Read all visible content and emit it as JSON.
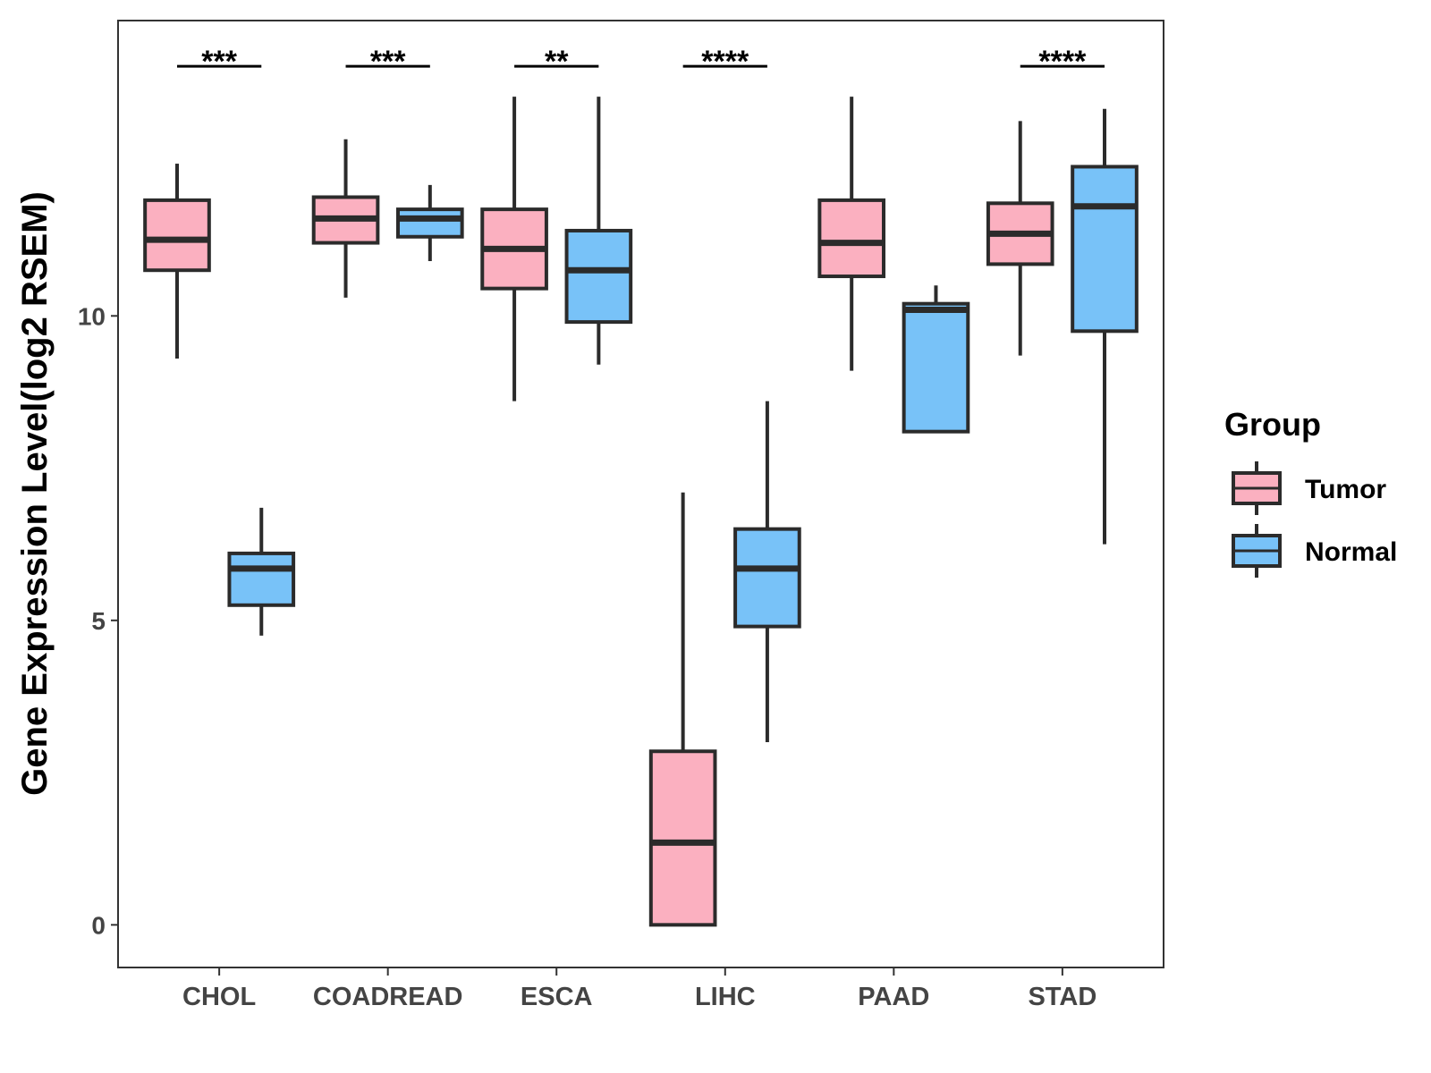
{
  "chart_data": {
    "type": "box",
    "title": "",
    "xlabel": "",
    "ylabel": "Gene Expression Level(log2 RSEM)",
    "ylim": [
      -0.7,
      14.85
    ],
    "yticks": [
      0,
      5,
      10
    ],
    "grid": false,
    "categories": [
      "CHOL",
      "COADREAD",
      "ESCA",
      "LIHC",
      "PAAD",
      "STAD"
    ],
    "legend": {
      "title": "Group",
      "placement": "right",
      "entries": [
        {
          "name": "Tumor",
          "color": "#FBB0C0"
        },
        {
          "name": "Normal",
          "color": "#78C2F8"
        }
      ]
    },
    "series": [
      {
        "name": "Tumor",
        "color": "#FBB0C0",
        "boxes": [
          {
            "category": "CHOL",
            "whisker_low": 9.3,
            "q1": 10.75,
            "median": 11.25,
            "q3": 11.9,
            "whisker_high": 12.5
          },
          {
            "category": "COADREAD",
            "whisker_low": 10.3,
            "q1": 11.2,
            "median": 11.6,
            "q3": 11.95,
            "whisker_high": 12.9
          },
          {
            "category": "ESCA",
            "whisker_low": 8.6,
            "q1": 10.45,
            "median": 11.1,
            "q3": 11.75,
            "whisker_high": 13.6
          },
          {
            "category": "LIHC",
            "whisker_low": 0.0,
            "q1": 0.0,
            "median": 1.35,
            "q3": 2.85,
            "whisker_high": 7.1
          },
          {
            "category": "PAAD",
            "whisker_low": 9.1,
            "q1": 10.65,
            "median": 11.2,
            "q3": 11.9,
            "whisker_high": 13.6
          },
          {
            "category": "STAD",
            "whisker_low": 9.35,
            "q1": 10.85,
            "median": 11.35,
            "q3": 11.85,
            "whisker_high": 13.2
          }
        ]
      },
      {
        "name": "Normal",
        "color": "#78C2F8",
        "boxes": [
          {
            "category": "CHOL",
            "whisker_low": 4.75,
            "q1": 5.25,
            "median": 5.85,
            "q3": 6.1,
            "whisker_high": 6.85
          },
          {
            "category": "COADREAD",
            "whisker_low": 10.9,
            "q1": 11.3,
            "median": 11.6,
            "q3": 11.75,
            "whisker_high": 12.15
          },
          {
            "category": "ESCA",
            "whisker_low": 9.2,
            "q1": 9.9,
            "median": 10.75,
            "q3": 11.4,
            "whisker_high": 13.6
          },
          {
            "category": "LIHC",
            "whisker_low": 3.0,
            "q1": 4.9,
            "median": 5.85,
            "q3": 6.5,
            "whisker_high": 8.6
          },
          {
            "category": "PAAD",
            "whisker_low": 8.1,
            "q1": 8.1,
            "median": 10.1,
            "q3": 10.2,
            "whisker_high": 10.5
          },
          {
            "category": "STAD",
            "whisker_low": 6.25,
            "q1": 9.75,
            "median": 11.8,
            "q3": 12.45,
            "whisker_high": 13.4
          }
        ]
      }
    ],
    "significance": [
      {
        "category": "CHOL",
        "label": "***",
        "y": 14.1
      },
      {
        "category": "COADREAD",
        "label": "***",
        "y": 14.1
      },
      {
        "category": "ESCA",
        "label": "**",
        "y": 14.1
      },
      {
        "category": "LIHC",
        "label": "****",
        "y": 14.1
      },
      {
        "category": "STAD",
        "label": "****",
        "y": 14.1
      }
    ]
  }
}
